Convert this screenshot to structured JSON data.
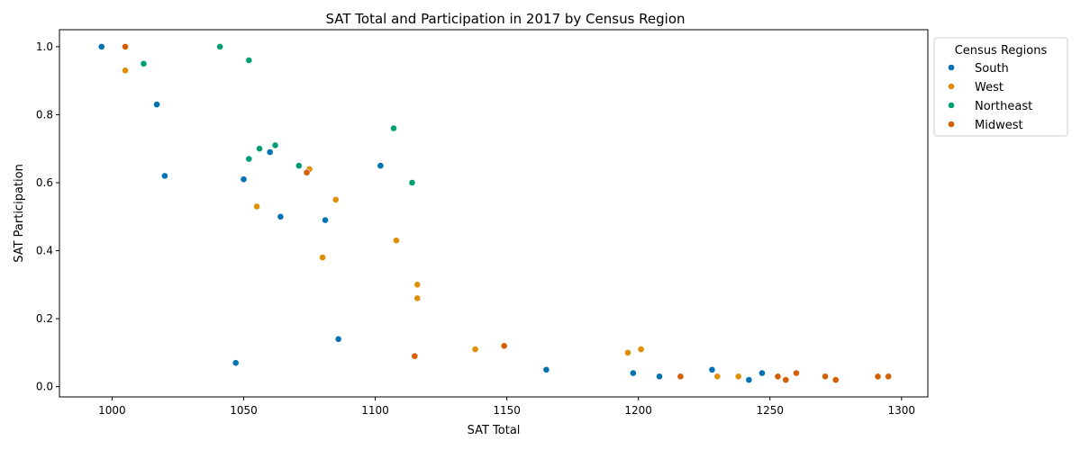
{
  "chart_data": {
    "type": "scatter",
    "title": "SAT Total and Participation in 2017 by Census Region",
    "xlabel": "SAT Total",
    "ylabel": "SAT Participation",
    "xlim": [
      980,
      1310
    ],
    "ylim": [
      -0.03,
      1.05
    ],
    "xticks": [
      "1000",
      "1050",
      "1100",
      "1150",
      "1200",
      "1250",
      "1300"
    ],
    "yticks": [
      "0.0",
      "0.2",
      "0.4",
      "0.6",
      "0.8",
      "1.0"
    ],
    "grid": false,
    "legend": {
      "title": "Census Regions",
      "placement": "outside-top-right"
    },
    "series": [
      {
        "name": "South",
        "color": "#0173b2",
        "points": [
          [
            996,
            1.0
          ],
          [
            1017,
            0.83
          ],
          [
            1020,
            0.62
          ],
          [
            1047,
            0.07
          ],
          [
            1050,
            0.61
          ],
          [
            1060,
            0.69
          ],
          [
            1064,
            0.5
          ],
          [
            1081,
            0.49
          ],
          [
            1086,
            0.14
          ],
          [
            1102,
            0.65
          ],
          [
            1165,
            0.05
          ],
          [
            1198,
            0.04
          ],
          [
            1208,
            0.03
          ],
          [
            1228,
            0.05
          ],
          [
            1242,
            0.02
          ],
          [
            1247,
            0.04
          ]
        ]
      },
      {
        "name": "West",
        "color": "#de8f05",
        "points": [
          [
            1005,
            0.93
          ],
          [
            1055,
            0.53
          ],
          [
            1075,
            0.64
          ],
          [
            1080,
            0.38
          ],
          [
            1085,
            0.55
          ],
          [
            1108,
            0.43
          ],
          [
            1116,
            0.3
          ],
          [
            1116,
            0.26
          ],
          [
            1138,
            0.11
          ],
          [
            1196,
            0.1
          ],
          [
            1201,
            0.11
          ],
          [
            1230,
            0.03
          ],
          [
            1238,
            0.03
          ]
        ]
      },
      {
        "name": "Northeast",
        "color": "#029e73",
        "points": [
          [
            1012,
            0.95
          ],
          [
            1041,
            1.0
          ],
          [
            1052,
            0.96
          ],
          [
            1052,
            0.67
          ],
          [
            1056,
            0.7
          ],
          [
            1062,
            0.71
          ],
          [
            1071,
            0.65
          ],
          [
            1107,
            0.76
          ],
          [
            1114,
            0.6
          ]
        ]
      },
      {
        "name": "Midwest",
        "color": "#d55e00",
        "points": [
          [
            1005,
            1.0
          ],
          [
            1074,
            0.63
          ],
          [
            1115,
            0.09
          ],
          [
            1149,
            0.12
          ],
          [
            1216,
            0.03
          ],
          [
            1253,
            0.03
          ],
          [
            1256,
            0.02
          ],
          [
            1260,
            0.04
          ],
          [
            1271,
            0.03
          ],
          [
            1275,
            0.02
          ],
          [
            1291,
            0.03
          ],
          [
            1295,
            0.03
          ]
        ]
      }
    ]
  }
}
